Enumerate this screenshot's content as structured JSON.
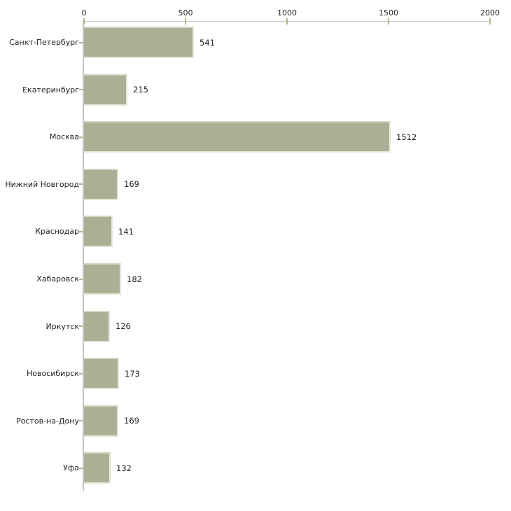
{
  "chart_data": {
    "type": "bar",
    "orientation": "horizontal",
    "title": "",
    "xlabel": "",
    "ylabel": "",
    "categories": [
      "Санкт-Петербург",
      "Екатеринбург",
      "Москва",
      "Нижний Новгород",
      "Краснодар",
      "Хабаровск",
      "Иркутск",
      "Новосибирск",
      "Ростов-на-Дону",
      "Уфа"
    ],
    "values": [
      541,
      215,
      1512,
      169,
      141,
      182,
      126,
      173,
      169,
      132
    ],
    "data_labels": [
      "541",
      "215",
      "1512",
      "169",
      "141",
      "182",
      "126",
      "173",
      "169",
      "132"
    ],
    "xticks": [
      "0",
      "500",
      "1000",
      "1500",
      "2000"
    ],
    "xtick_values": [
      0,
      500,
      1000,
      1500,
      2000
    ],
    "xlim": [
      0,
      2000
    ],
    "grid": false,
    "legend": false,
    "axis_position": "top",
    "colors": {
      "bar": "#abb095",
      "bar_edge_top": "#d3d7c3",
      "bar_edge_light": "#e4e7d8",
      "axis_line": "#c4c4c4",
      "tick_mark": "#b4b488",
      "text": "#222222",
      "background": "#ffffff"
    }
  }
}
